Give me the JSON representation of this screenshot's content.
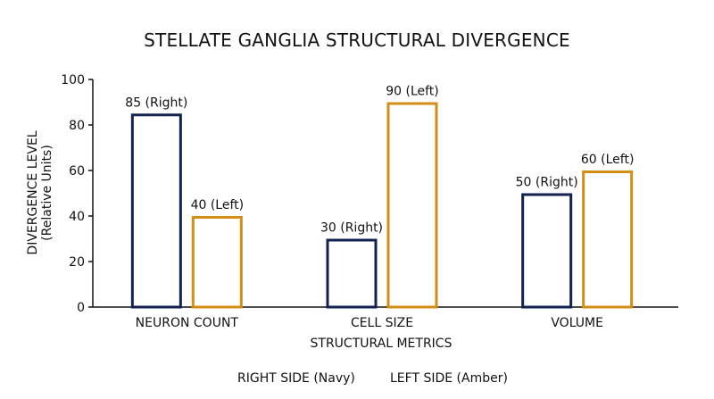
{
  "colors": {
    "right": "#13214f",
    "left": "#d28e16",
    "text": "#111111",
    "background": "#ffffff"
  },
  "chart_data": {
    "type": "bar",
    "title": "STELLATE GANGLIA STRUCTURAL DIVERGENCE",
    "xlabel": "STRUCTURAL METRICS",
    "ylabel_lines": [
      "DIVERGENCE LEVEL",
      "(Relative Units)"
    ],
    "categories": [
      "NEURON COUNT",
      "CELL SIZE",
      "VOLUME"
    ],
    "ylim": [
      0,
      100
    ],
    "y_ticks": [
      0,
      20,
      40,
      60,
      80,
      100
    ],
    "grid": false,
    "legend_position": "bottom-center",
    "series": [
      {
        "name": "RIGHT SIDE (Navy)",
        "color_key": "right",
        "values": [
          85,
          30,
          50
        ],
        "data_labels": [
          "85 (Right)",
          "30 (Right)",
          "50 (Right)"
        ]
      },
      {
        "name": "LEFT SIDE (Amber)",
        "color_key": "left",
        "values": [
          40,
          90,
          60
        ],
        "data_labels": [
          "40 (Left)",
          "90 (Left)",
          "60 (Left)"
        ]
      }
    ]
  }
}
